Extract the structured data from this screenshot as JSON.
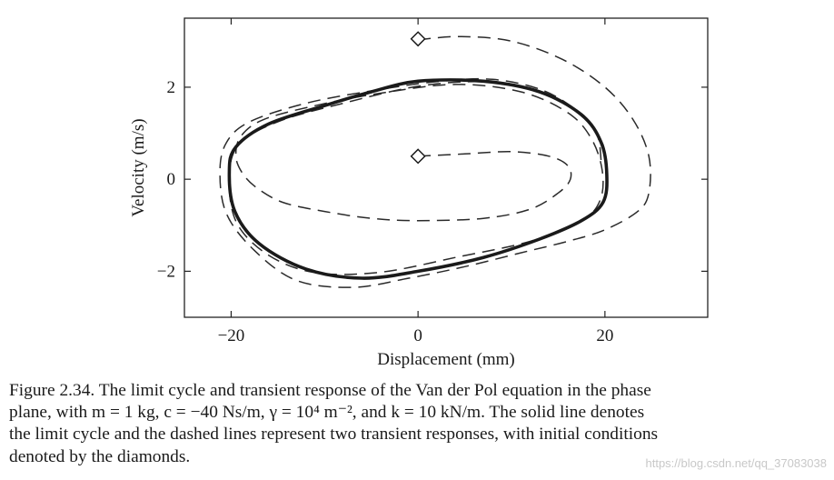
{
  "chart_data": {
    "type": "line",
    "xlabel": "Displacement (mm)",
    "ylabel": "Velocity (m/s)",
    "xlim": [
      -25,
      31
    ],
    "ylim": [
      -3,
      3.5
    ],
    "xticks": [
      -20,
      0,
      20
    ],
    "xtick_labels": [
      "−20",
      "0",
      "20"
    ],
    "yticks": [
      -2,
      0,
      2
    ],
    "ytick_labels": [
      "−2",
      "0",
      "2"
    ],
    "grid": false,
    "limit_cycle": {
      "style": "solid",
      "x": [
        0,
        7,
        13,
        17.5,
        19.6,
        20.2,
        19.8,
        17.5,
        13,
        7,
        0,
        -6,
        -12,
        -17,
        -19.6,
        -20.2,
        -19.5,
        -16,
        -10,
        -5
      ],
      "y": [
        2.13,
        2.13,
        1.9,
        1.4,
        0.8,
        0.1,
        -0.5,
        -0.9,
        -1.3,
        -1.7,
        -2.0,
        -2.15,
        -1.95,
        -1.4,
        -0.7,
        0.15,
        0.7,
        1.2,
        1.6,
        1.9
      ]
    },
    "transients": [
      {
        "style": "dashed",
        "x": [
          0,
          5,
          10,
          14,
          16,
          16.3,
          15,
          12,
          7,
          0,
          -5,
          -10,
          -14.5,
          -17.5,
          -19,
          -19.5,
          -18.9,
          -16.5,
          -11,
          -4,
          4,
          11,
          16,
          18.5,
          19.7,
          19.5,
          17.5,
          12,
          4,
          -4,
          -11,
          -16,
          -19.4,
          -20.2,
          -19.2,
          -15,
          -8,
          0,
          7,
          12.5,
          17,
          19.1,
          19.6
        ],
        "y": [
          0.5,
          0.55,
          0.6,
          0.5,
          0.3,
          0.0,
          -0.3,
          -0.65,
          -0.85,
          -0.9,
          -0.85,
          -0.7,
          -0.5,
          -0.15,
          0.2,
          0.55,
          0.95,
          1.3,
          1.6,
          1.87,
          2.06,
          1.9,
          1.45,
          0.9,
          0.2,
          -0.45,
          -0.9,
          -1.35,
          -1.7,
          -2.02,
          -2.03,
          -1.65,
          -0.95,
          0.0,
          0.75,
          1.25,
          1.65,
          2.02,
          2.12,
          1.95,
          1.5,
          1.0,
          0.4
        ]
      },
      {
        "style": "dashed",
        "x": [
          0,
          4.5,
          10,
          15.5,
          20,
          23,
          24.7,
          24.7,
          23.5,
          20,
          16,
          11,
          5,
          -1,
          -7,
          -13,
          -17.5,
          -20.5,
          -21.2,
          -20.5,
          -18,
          -12,
          -5,
          2,
          8,
          13.5,
          17.5,
          19.7,
          20.2
        ],
        "y": [
          3.03,
          3.1,
          3.0,
          2.6,
          2.0,
          1.3,
          0.5,
          -0.3,
          -0.7,
          -1.1,
          -1.35,
          -1.6,
          -1.9,
          -2.15,
          -2.35,
          -2.2,
          -1.55,
          -0.75,
          0.15,
          0.8,
          1.25,
          1.65,
          1.92,
          2.12,
          2.17,
          1.92,
          1.4,
          0.8,
          0.15
        ]
      }
    ],
    "initial_conditions": [
      {
        "x": 0,
        "y": 3.05
      },
      {
        "x": 0,
        "y": 0.5
      }
    ]
  },
  "caption": [
    "Figure  2.34. The limit cycle and transient response of the Van der Pol equation in the phase",
    "plane, with m = 1 kg, c = −40 Ns/m, γ = 10⁴ m⁻², and k = 10 kN/m. The solid line denotes",
    "the limit cycle and the dashed lines represent two transient responses, with initial conditions",
    "denoted by the diamonds."
  ],
  "watermark": "https://blog.csdn.net/qq_37083038"
}
